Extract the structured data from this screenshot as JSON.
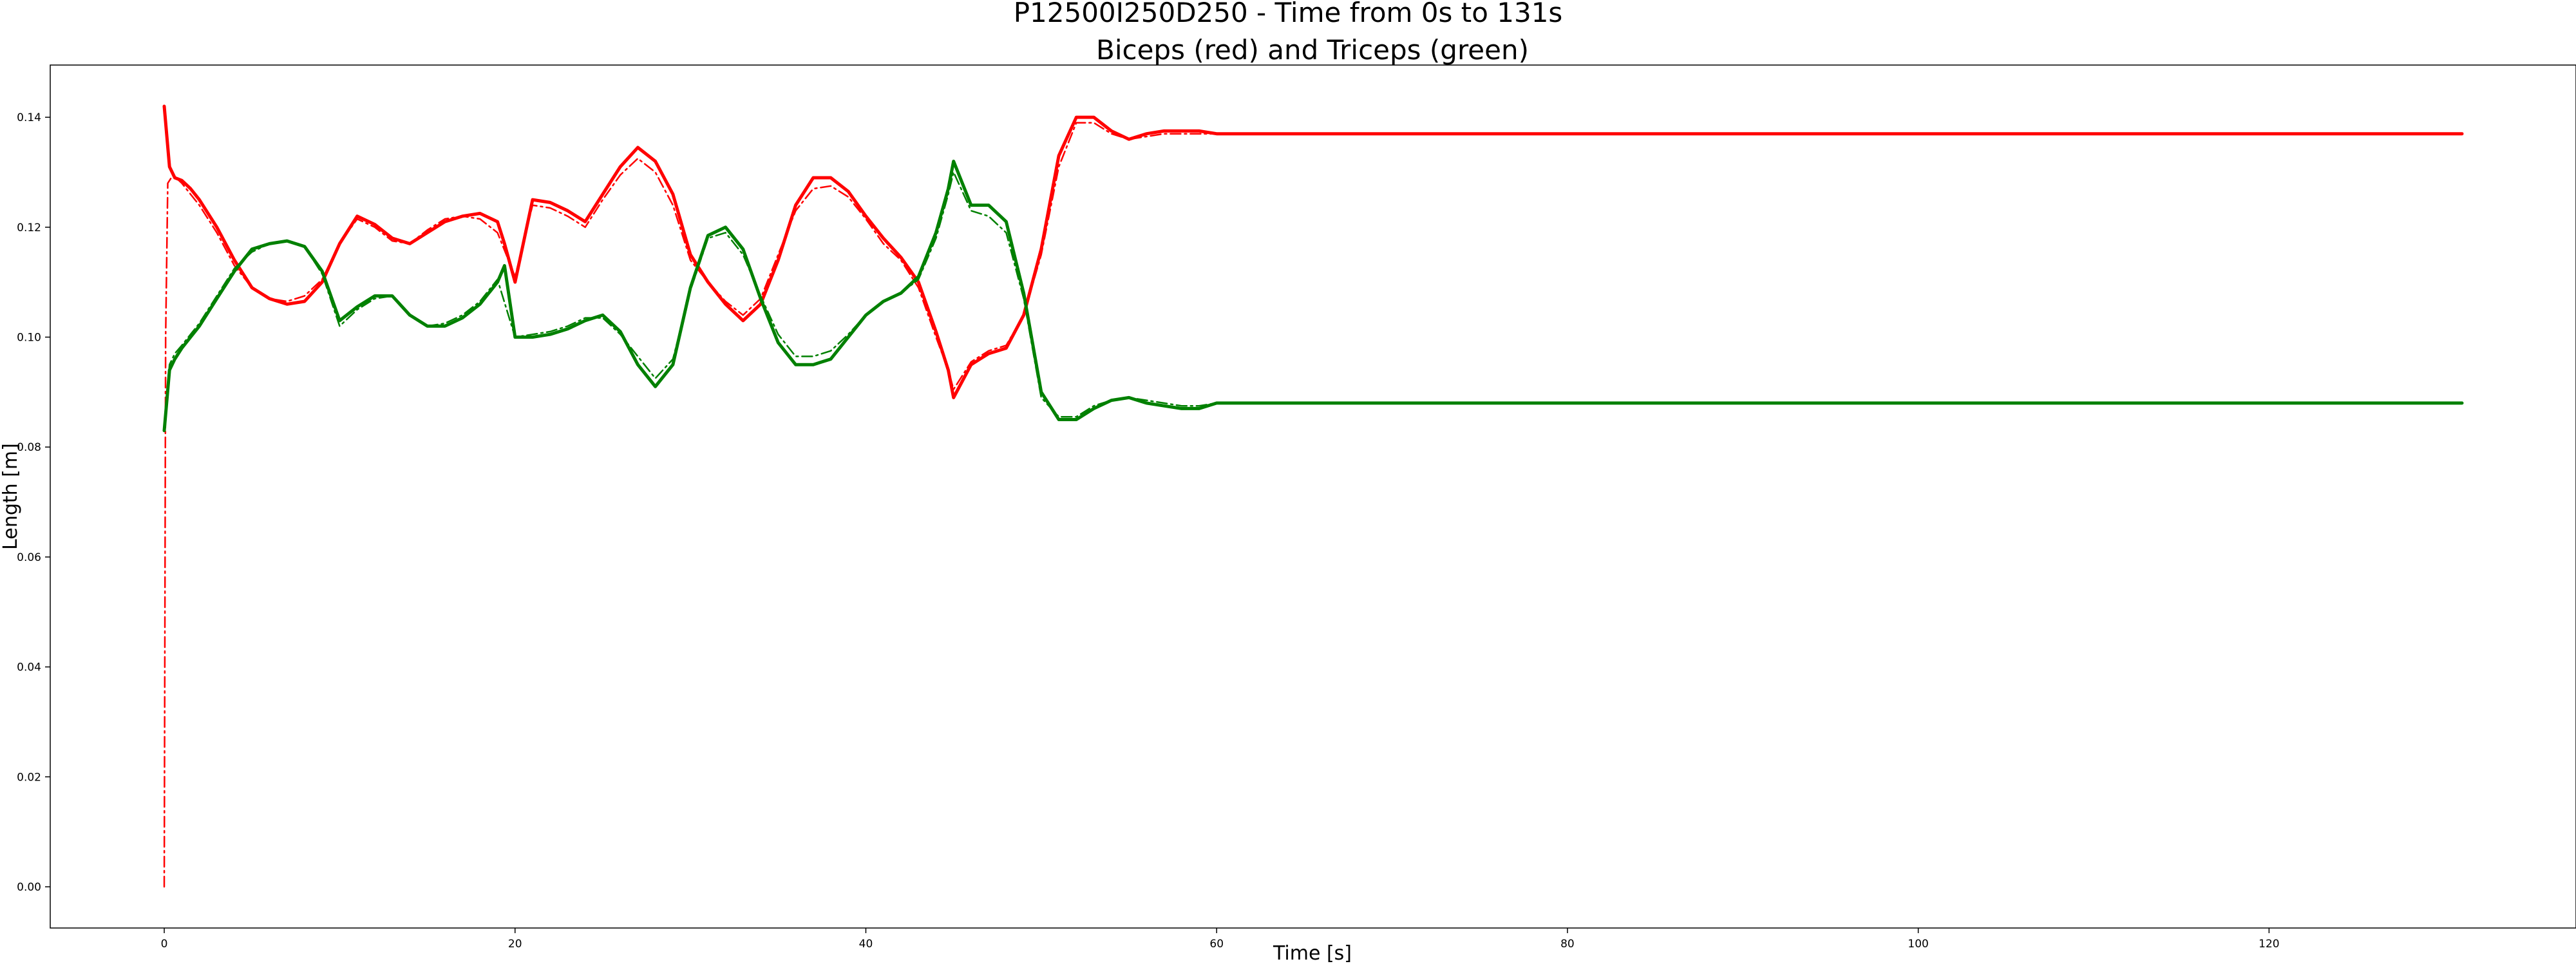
{
  "chart_data": {
    "type": "line",
    "title": "P12500I250D250 - Time from 0s to 131s",
    "subtitle": "Biceps (red) and Triceps (green)",
    "xlabel": "Time [s]",
    "ylabel": "Length [m]",
    "xlim": [
      -6.5,
      137.5
    ],
    "ylim": [
      -0.0075,
      0.1495
    ],
    "x_ticks": [
      0,
      20,
      40,
      60,
      80,
      100,
      120
    ],
    "x_tick_labels": [
      "0",
      "20",
      "40",
      "60",
      "80",
      "100",
      "120"
    ],
    "y_ticks": [
      0.0,
      0.02,
      0.04,
      0.06,
      0.08,
      0.1,
      0.12,
      0.14
    ],
    "y_tick_labels": [
      "0.00",
      "0.02",
      "0.04",
      "0.06",
      "0.08",
      "0.10",
      "0.12",
      "0.14"
    ],
    "grid": false,
    "legend": "none",
    "series": [
      {
        "style": "solid",
        "color": "#ff0000",
        "x": [
          0,
          0.3,
          0.6,
          1.0,
          1.5,
          2.0,
          3.0,
          4.0,
          5.0,
          6.0,
          7.0,
          8.0,
          9.0,
          10.0,
          11.0,
          12.0,
          13.0,
          14.0,
          15.0,
          16.0,
          17.0,
          18.0,
          19.0,
          19.4,
          20.0,
          21.0,
          22.0,
          23.0,
          24.0,
          25.0,
          26.0,
          27.0,
          28.0,
          29.0,
          30.0,
          31.0,
          32.0,
          33.0,
          34.0,
          35.0,
          36.0,
          37.0,
          38.0,
          39.0,
          40.0,
          41.0,
          42.0,
          43.0,
          44.0,
          44.7,
          45.0,
          46.0,
          47.0,
          48.0,
          49.0,
          50.0,
          51.0,
          52.0,
          53.0,
          54.0,
          55.0,
          56.0,
          57.0,
          58.0,
          59.0,
          60.0,
          61.0,
          131.0
        ],
        "y": [
          0.142,
          0.131,
          0.129,
          0.1285,
          0.127,
          0.125,
          0.12,
          0.114,
          0.109,
          0.107,
          0.106,
          0.1065,
          0.11,
          0.117,
          0.122,
          0.1205,
          0.118,
          0.117,
          0.119,
          0.121,
          0.122,
          0.1225,
          0.121,
          0.117,
          0.11,
          0.125,
          0.1245,
          0.123,
          0.121,
          0.126,
          0.131,
          0.1345,
          0.132,
          0.126,
          0.115,
          0.11,
          0.106,
          0.103,
          0.106,
          0.114,
          0.124,
          0.129,
          0.129,
          0.1265,
          0.122,
          0.118,
          0.1145,
          0.11,
          0.101,
          0.094,
          0.089,
          0.095,
          0.097,
          0.098,
          0.104,
          0.116,
          0.133,
          0.14,
          0.14,
          0.1375,
          0.136,
          0.137,
          0.1375,
          0.1375,
          0.1375,
          0.137,
          0.137,
          0.137
        ]
      },
      {
        "style": "dashdot",
        "color": "#ff0000",
        "x": [
          0,
          0.08,
          0.2,
          0.5,
          1.0,
          1.5,
          2.0,
          3.0,
          4.0,
          5.0,
          6.0,
          7.0,
          8.0,
          9.0,
          10.0,
          11.0,
          12.0,
          13.0,
          14.0,
          15.0,
          16.0,
          17.0,
          18.0,
          19.0,
          20.0,
          21.0,
          22.0,
          23.0,
          24.0,
          25.0,
          26.0,
          27.0,
          28.0,
          29.0,
          30.0,
          31.0,
          32.0,
          33.0,
          34.0,
          35.0,
          36.0,
          37.0,
          38.0,
          39.0,
          40.0,
          41.0,
          42.0,
          43.0,
          44.0,
          44.7,
          45.0,
          46.0,
          47.0,
          48.0,
          49.0,
          50.0,
          51.0,
          52.0,
          53.0,
          54.0,
          55.0,
          56.0,
          57.0,
          58.0,
          59.0,
          60.0,
          61.0,
          131.0
        ],
        "y": [
          0.0,
          0.1,
          0.128,
          0.1295,
          0.128,
          0.126,
          0.124,
          0.119,
          0.113,
          0.109,
          0.107,
          0.1065,
          0.1075,
          0.1105,
          0.117,
          0.1215,
          0.12,
          0.1175,
          0.117,
          0.1195,
          0.1215,
          0.122,
          0.1215,
          0.119,
          0.111,
          0.124,
          0.1235,
          0.122,
          0.12,
          0.125,
          0.1295,
          0.1325,
          0.13,
          0.124,
          0.114,
          0.11,
          0.1065,
          0.104,
          0.107,
          0.115,
          0.123,
          0.127,
          0.1275,
          0.1255,
          0.1215,
          0.117,
          0.114,
          0.109,
          0.1,
          0.094,
          0.0905,
          0.0955,
          0.0975,
          0.0985,
          0.104,
          0.115,
          0.131,
          0.139,
          0.139,
          0.137,
          0.136,
          0.1365,
          0.137,
          0.137,
          0.137,
          0.137,
          0.137,
          0.137
        ]
      },
      {
        "style": "solid",
        "color": "#008000",
        "x": [
          0,
          0.3,
          0.6,
          1.0,
          1.5,
          2.0,
          3.0,
          4.0,
          5.0,
          6.0,
          7.0,
          8.0,
          9.0,
          10.0,
          11.0,
          12.0,
          13.0,
          14.0,
          15.0,
          16.0,
          17.0,
          18.0,
          19.0,
          19.4,
          20.0,
          21.0,
          22.0,
          23.0,
          24.0,
          25.0,
          26.0,
          27.0,
          28.0,
          29.0,
          30.0,
          31.0,
          32.0,
          33.0,
          34.0,
          35.0,
          36.0,
          37.0,
          38.0,
          39.0,
          40.0,
          41.0,
          42.0,
          43.0,
          44.0,
          44.7,
          45.0,
          46.0,
          47.0,
          48.0,
          49.0,
          50.0,
          51.0,
          52.0,
          53.0,
          54.0,
          55.0,
          56.0,
          57.0,
          58.0,
          59.0,
          60.0,
          61.0,
          131.0
        ],
        "y": [
          0.083,
          0.094,
          0.096,
          0.098,
          0.1,
          0.102,
          0.107,
          0.112,
          0.116,
          0.117,
          0.1175,
          0.1165,
          0.112,
          0.103,
          0.1055,
          0.1075,
          0.1075,
          0.104,
          0.102,
          0.102,
          0.1035,
          0.106,
          0.11,
          0.113,
          0.1,
          0.1,
          0.1005,
          0.1015,
          0.103,
          0.104,
          0.101,
          0.095,
          0.091,
          0.095,
          0.109,
          0.1185,
          0.12,
          0.116,
          0.107,
          0.099,
          0.095,
          0.095,
          0.096,
          0.1,
          0.104,
          0.1065,
          0.108,
          0.111,
          0.119,
          0.127,
          0.132,
          0.124,
          0.124,
          0.121,
          0.108,
          0.09,
          0.085,
          0.085,
          0.087,
          0.0885,
          0.089,
          0.088,
          0.0875,
          0.087,
          0.087,
          0.088,
          0.088,
          0.088
        ]
      },
      {
        "style": "dashdot",
        "color": "#008000",
        "x": [
          0,
          0.3,
          0.6,
          1.0,
          1.5,
          2.0,
          3.0,
          4.0,
          5.0,
          6.0,
          7.0,
          8.0,
          9.0,
          10.0,
          11.0,
          12.0,
          13.0,
          14.0,
          15.0,
          16.0,
          17.0,
          18.0,
          19.0,
          20.0,
          21.0,
          22.0,
          23.0,
          24.0,
          25.0,
          26.0,
          27.0,
          28.0,
          29.0,
          30.0,
          31.0,
          32.0,
          33.0,
          34.0,
          35.0,
          36.0,
          37.0,
          38.0,
          39.0,
          40.0,
          41.0,
          42.0,
          43.0,
          44.0,
          44.7,
          45.0,
          46.0,
          47.0,
          48.0,
          49.0,
          50.0,
          51.0,
          52.0,
          53.0,
          54.0,
          55.0,
          56.0,
          57.0,
          58.0,
          59.0,
          60.0,
          61.0,
          131.0
        ],
        "y": [
          0.083,
          0.095,
          0.097,
          0.0985,
          0.1005,
          0.1025,
          0.1075,
          0.1125,
          0.1155,
          0.117,
          0.1175,
          0.1165,
          0.1115,
          0.102,
          0.105,
          0.107,
          0.1075,
          0.104,
          0.102,
          0.1025,
          0.104,
          0.1065,
          0.1105,
          0.1,
          0.1005,
          0.101,
          0.102,
          0.1035,
          0.1035,
          0.1005,
          0.0965,
          0.0925,
          0.096,
          0.1085,
          0.118,
          0.119,
          0.115,
          0.1075,
          0.1005,
          0.0965,
          0.0965,
          0.0975,
          0.1005,
          0.104,
          0.1065,
          0.108,
          0.1105,
          0.118,
          0.126,
          0.13,
          0.123,
          0.122,
          0.119,
          0.107,
          0.089,
          0.0855,
          0.0855,
          0.0875,
          0.0885,
          0.089,
          0.0885,
          0.088,
          0.0875,
          0.0875,
          0.088,
          0.088,
          0.088
        ]
      }
    ]
  }
}
